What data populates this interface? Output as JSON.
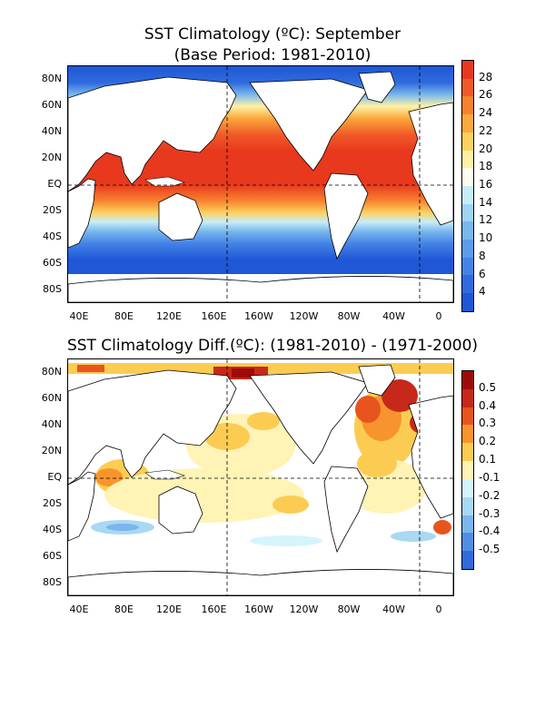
{
  "top": {
    "title": "SST Climatology (ºC): September",
    "subtitle": "(Base Period: 1981-2010)",
    "lat_labels": [
      "80N",
      "60N",
      "40N",
      "20N",
      "EQ",
      "20S",
      "40S",
      "60S",
      "80S"
    ],
    "lon_labels": [
      "40E",
      "80E",
      "120E",
      "160E",
      "160W",
      "120W",
      "80W",
      "40W",
      "0"
    ],
    "legend_labels": [
      "28",
      "26",
      "24",
      "22",
      "20",
      "18",
      "16",
      "14",
      "12",
      "10",
      "8",
      "6",
      "4"
    ],
    "legend_colors": [
      "#e8381e",
      "#f05a28",
      "#f7822e",
      "#fba93c",
      "#fdd15e",
      "#fff2a6",
      "#fcfdee",
      "#c7edf8",
      "#9fd4f2",
      "#79b7ed",
      "#5b9ceb",
      "#4584e6",
      "#2f6bdc",
      "#1f57d6"
    ]
  },
  "bottom": {
    "title": "SST Climatology Diff.(ºC): (1981-2010) - (1971-2000)",
    "lat_labels": [
      "80N",
      "60N",
      "40N",
      "20N",
      "EQ",
      "20S",
      "40S",
      "60S",
      "80S"
    ],
    "lon_labels": [
      "40E",
      "80E",
      "120E",
      "160E",
      "160W",
      "120W",
      "80W",
      "40W",
      "0"
    ],
    "legend_labels": [
      "0.5",
      "0.4",
      "0.3",
      "0.2",
      "0.1",
      "-0.1",
      "-0.2",
      "-0.3",
      "-0.4",
      "-0.5"
    ],
    "legend_colors": [
      "#a00a0a",
      "#c8281a",
      "#e8541e",
      "#f7942e",
      "#fccc52",
      "#fff3b6",
      "#d6f4fb",
      "#a9d8f2",
      "#7bb6ec",
      "#4f8fe3",
      "#2f6bdc"
    ]
  }
}
